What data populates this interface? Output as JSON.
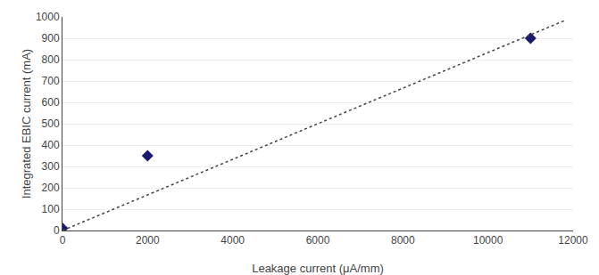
{
  "chart_data": {
    "type": "scatter",
    "xlabel": "Leakage current (μA/mm)",
    "ylabel": "Integrated EBIC current (mA)",
    "series": [
      {
        "type": "scatter",
        "x": [
          0,
          2000,
          11000
        ],
        "values": [
          10,
          350,
          900
        ],
        "color": "#1a1a6e",
        "marker": "diamond"
      },
      {
        "type": "line",
        "x": [
          0,
          11800
        ],
        "values": [
          0,
          983
        ],
        "color": "#444444",
        "line_style": "dot"
      }
    ],
    "xlim": [
      0,
      12000
    ],
    "ylim": [
      0,
      1000
    ],
    "xticks": [
      0,
      2000,
      4000,
      6000,
      8000,
      10000,
      12000
    ],
    "yticks": [
      0,
      100,
      200,
      300,
      400,
      500,
      600,
      700,
      800,
      900,
      1000
    ],
    "grid": true
  }
}
